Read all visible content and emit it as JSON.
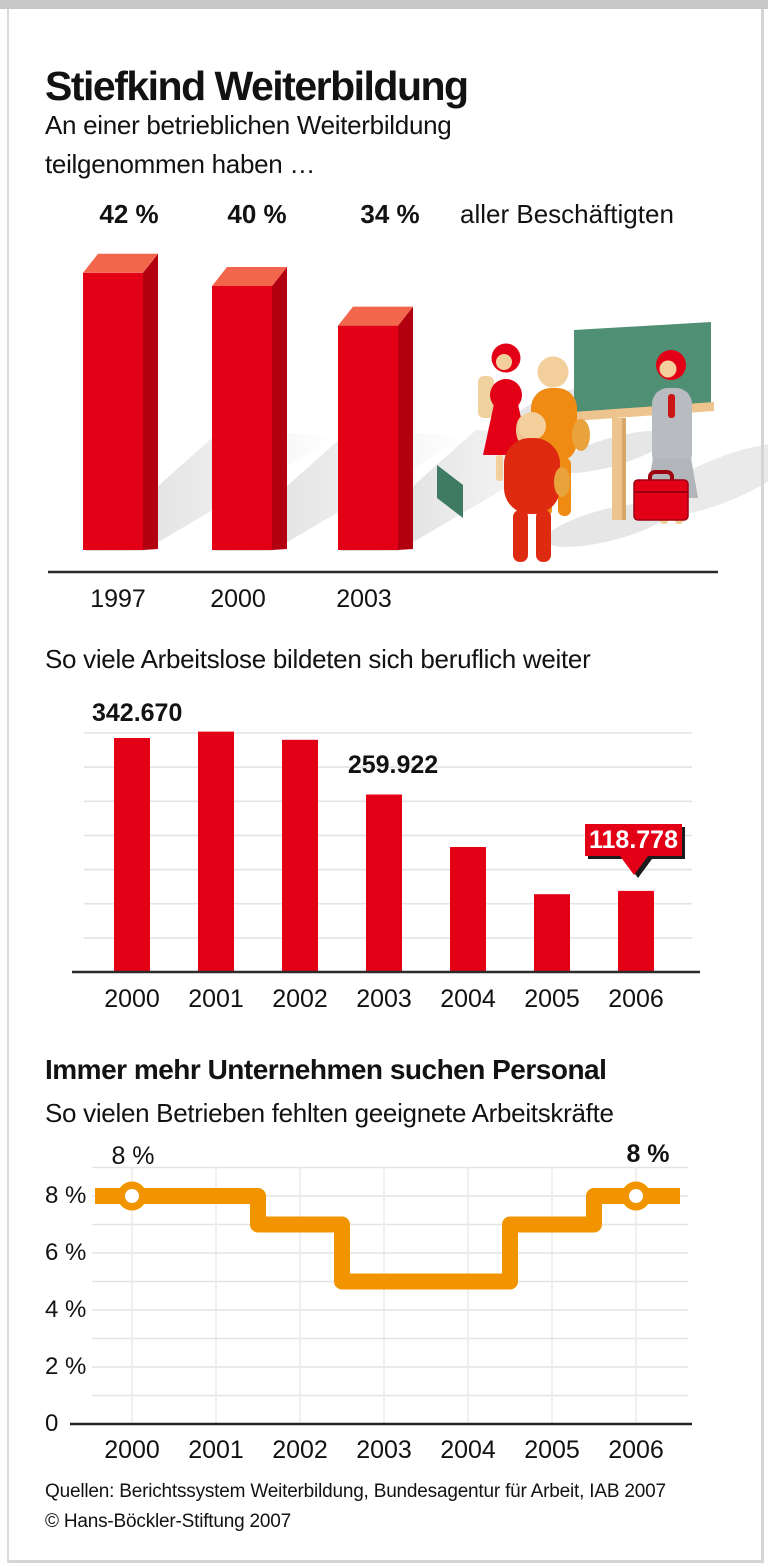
{
  "page": {
    "title": "Stiefkind Weiterbildung",
    "intro": [
      "An einer betrieblichen Weiterbildung",
      "teilgenommen haben …"
    ],
    "footer": [
      "Quellen: Berichtssystem Weiterbildung, Bundesagentur für Arbeit, IAB 2007",
      "© Hans-Böckler-Stiftung 2007"
    ]
  },
  "colors": {
    "red": "#e30016",
    "red_side": "#b30011",
    "red_top": "#f2674c",
    "orange": "#f29400",
    "board_green": "#4f8f74",
    "beige": "#eec48e",
    "skin": "#f3cf9c",
    "coat_gray": "#b8bbbf",
    "grid": "#e3e3e3",
    "ink": "#121212"
  },
  "chart_data": [
    {
      "type": "bar",
      "style": "3d",
      "title": "An einer betrieblichen Weiterbildung teilgenommen haben …",
      "categories": [
        "1997",
        "2000",
        "2003"
      ],
      "values": [
        42,
        40,
        34
      ],
      "unit": "percent",
      "bar_labels": [
        "42 %",
        "40 %",
        "34 %"
      ],
      "suffix_label": "aller Beschäftigten",
      "ylim": [
        0,
        45
      ],
      "grid": false
    },
    {
      "type": "bar",
      "title": "So viele Arbeitslose bildeten sich beruflich weiter",
      "categories": [
        "2000",
        "2001",
        "2002",
        "2003",
        "2004",
        "2005",
        "2006"
      ],
      "values": [
        342670,
        352000,
        340000,
        259922,
        183000,
        114000,
        118778
      ],
      "value_labels": {
        "2000": "342.670",
        "2003": "259.922",
        "2006": "118.778"
      },
      "gridline_step": 50000,
      "ylim": [
        0,
        360000
      ],
      "grid": true
    },
    {
      "type": "line",
      "line_style": "step",
      "title": "Immer mehr Unternehmen suchen Personal",
      "subtitle": "So vielen Betrieben fehlten geeignete Arbeitskräfte",
      "x": [
        "2000",
        "2001",
        "2002",
        "2003",
        "2004",
        "2005",
        "2006"
      ],
      "values": [
        8,
        8,
        7,
        5,
        5,
        7,
        8
      ],
      "unit": "percent",
      "point_labels": {
        "2000": "8 %",
        "2006": "8 %"
      },
      "ytick_labels": [
        "8 %",
        "6 %",
        "4 %",
        "2 %",
        "0"
      ],
      "ytick_values": [
        8,
        6,
        4,
        2,
        0
      ],
      "ylim": [
        0,
        9
      ],
      "grid": true,
      "legend": "none"
    }
  ]
}
